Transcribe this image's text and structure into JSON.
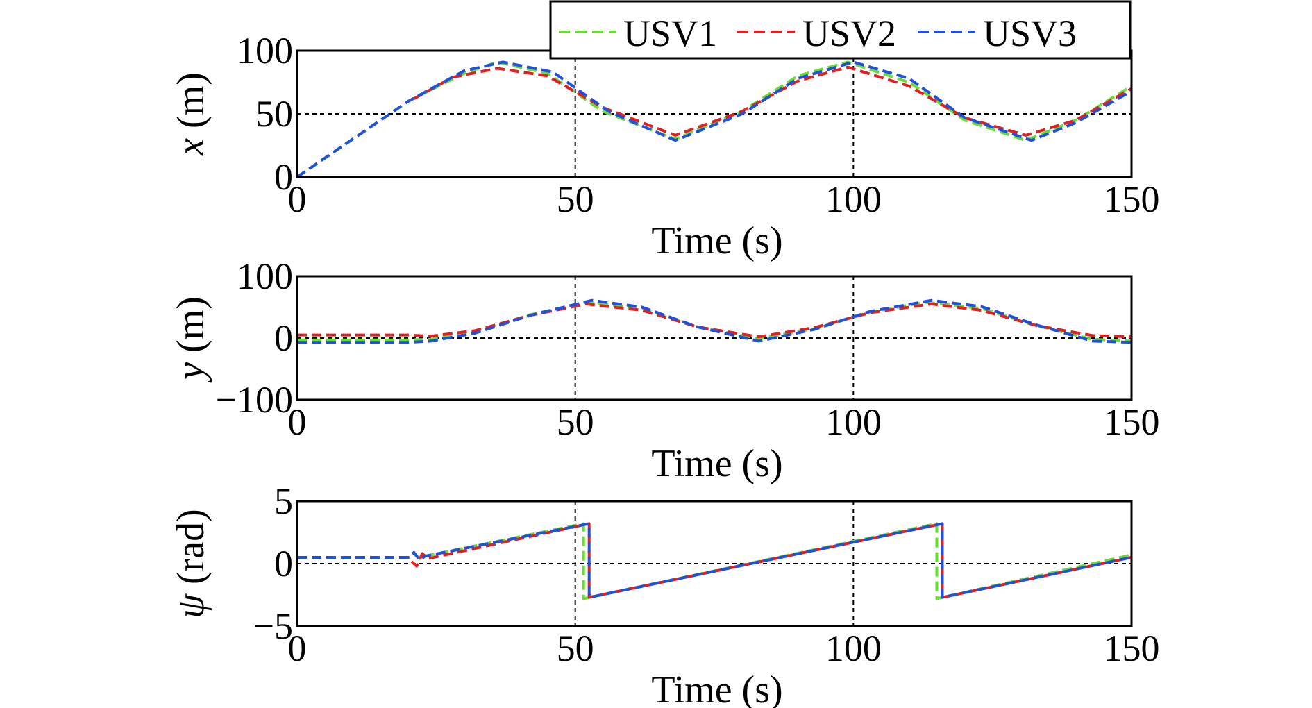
{
  "colors": {
    "usv1": "#66dd33",
    "usv2": "#e02020",
    "usv3": "#2050dd",
    "axis": "#000000",
    "grid": "#000000"
  },
  "legend": {
    "placement": "top-right",
    "entries": [
      "USV1",
      "USV2",
      "USV3"
    ]
  },
  "chart_data": [
    {
      "type": "line",
      "xlabel": "Time (s)",
      "ylabel_var": "x",
      "ylabel_unit": "(m)",
      "xlim": [
        0,
        150
      ],
      "ylim": [
        0,
        100
      ],
      "xticks": [
        "0",
        "50",
        "100",
        "150"
      ],
      "yticks": [
        "0",
        "50",
        "100"
      ],
      "grid": "dashed at x=50,100 and y=50",
      "series": [
        {
          "name": "USV1",
          "x": [
            0,
            10,
            20,
            30,
            36,
            45,
            55,
            68,
            80,
            90,
            99,
            110,
            120,
            131,
            140,
            150
          ],
          "values": [
            0,
            30,
            60,
            82,
            91,
            82,
            52,
            30,
            52,
            80,
            91,
            75,
            45,
            29,
            45,
            72
          ]
        },
        {
          "name": "USV2",
          "x": [
            21,
            28,
            36,
            45,
            55,
            68,
            80,
            90,
            99,
            110,
            120,
            131,
            140,
            150
          ],
          "values": [
            62,
            79,
            86,
            80,
            55,
            33,
            52,
            76,
            87,
            72,
            47,
            33,
            45,
            70
          ]
        },
        {
          "name": "USV3",
          "x": [
            0,
            10,
            20,
            30,
            37,
            46,
            56,
            68,
            80,
            90,
            100,
            110,
            120,
            132,
            140,
            150
          ],
          "values": [
            0,
            30,
            60,
            84,
            91,
            83,
            52,
            29,
            50,
            78,
            91,
            78,
            47,
            29,
            43,
            68
          ]
        }
      ]
    },
    {
      "type": "line",
      "xlabel": "Time (s)",
      "ylabel_var": "y",
      "ylabel_unit": "(m)",
      "xlim": [
        0,
        150
      ],
      "ylim": [
        -100,
        100
      ],
      "xticks": [
        "0",
        "50",
        "100",
        "150"
      ],
      "yticks": [
        "−100",
        "0",
        "100"
      ],
      "grid": "dashed at x=50,100 and y=0",
      "series": [
        {
          "name": "USV1",
          "x": [
            0,
            20,
            24,
            32,
            42,
            52,
            62,
            72,
            83,
            93,
            103,
            113,
            123,
            133,
            143,
            150
          ],
          "values": [
            -3,
            -3,
            -2,
            10,
            38,
            58,
            48,
            18,
            -1,
            15,
            42,
            58,
            48,
            20,
            -2,
            -5
          ]
        },
        {
          "name": "USV2",
          "x": [
            0,
            20,
            24,
            32,
            42,
            52,
            62,
            72,
            83,
            93,
            103,
            114,
            123,
            133,
            143,
            150
          ],
          "values": [
            5,
            5,
            3,
            12,
            37,
            55,
            45,
            18,
            2,
            17,
            41,
            55,
            45,
            20,
            4,
            2
          ]
        },
        {
          "name": "USV3",
          "x": [
            0,
            20,
            24,
            32,
            42,
            53,
            62,
            72,
            83,
            93,
            103,
            114,
            123,
            133,
            143,
            150
          ],
          "values": [
            -7,
            -7,
            -5,
            8,
            37,
            61,
            50,
            18,
            -5,
            14,
            43,
            61,
            51,
            21,
            -5,
            -7
          ]
        }
      ]
    },
    {
      "type": "line",
      "xlabel": "Time (s)",
      "ylabel_var": "ψ",
      "ylabel_unit": "(rad)",
      "xlim": [
        0,
        150
      ],
      "ylim": [
        -5,
        5
      ],
      "xticks": [
        "0",
        "50",
        "100",
        "150"
      ],
      "yticks": [
        "−5",
        "0",
        "5"
      ],
      "grid": "dashed at x=50,100 and y=0",
      "series": [
        {
          "name": "USV1",
          "x": [
            0,
            20,
            21,
            22,
            23,
            51.5,
            51.5,
            115,
            115,
            150
          ],
          "values": [
            0.5,
            0.5,
            0.8,
            0.4,
            0.6,
            3.2,
            -2.8,
            3.2,
            -2.8,
            0.7
          ]
        },
        {
          "name": "USV2",
          "x": [
            0,
            20,
            20.5,
            21.5,
            22.5,
            23.5,
            52.5,
            52.5,
            116,
            116,
            150
          ],
          "values": [
            0.5,
            0.5,
            0.2,
            -0.2,
            0.8,
            0.4,
            3.2,
            -2.7,
            3.2,
            -2.7,
            0.5
          ]
        },
        {
          "name": "USV3",
          "x": [
            0,
            20,
            21,
            22,
            23,
            52.5,
            52.5,
            116,
            116,
            150
          ],
          "values": [
            0.5,
            0.5,
            0.9,
            0.3,
            0.6,
            3.2,
            -2.7,
            3.2,
            -2.7,
            0.5
          ]
        }
      ]
    }
  ]
}
